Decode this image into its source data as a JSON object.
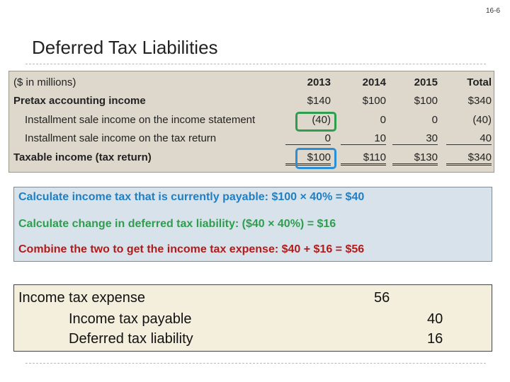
{
  "slide_number": "16-6",
  "title": "Deferred Tax Liabilities",
  "table": {
    "unit_label": "($ in millions)",
    "columns": [
      "2013",
      "2014",
      "2015",
      "Total"
    ],
    "rows": [
      {
        "label": "Pretax accounting income",
        "values": [
          "$140",
          "$100",
          "$100",
          "$340"
        ]
      },
      {
        "label": "Installment sale income on the income statement",
        "values": [
          "(40)",
          "0",
          "0",
          "(40)"
        ]
      },
      {
        "label": "Installment sale income on the tax return",
        "values": [
          "0",
          "10",
          "30",
          "40"
        ]
      },
      {
        "label": "Taxable income (tax return)",
        "values": [
          "$100",
          "$110",
          "$130",
          "$340"
        ]
      }
    ]
  },
  "calculations": [
    {
      "text": "Calculate income tax that is currently payable:  $100 × 40% = $40",
      "color": "#1f7fc4"
    },
    {
      "text": "Calculate change in deferred tax liability:  ($40 × 40%) = $16",
      "color": "#2e9e4e"
    },
    {
      "text": "Combine the two to get the income tax expense: $40 + $16 = $56",
      "color": "#b31b1b"
    }
  ],
  "journal_entry": {
    "debit_account": "Income tax expense",
    "debit_amount": "56",
    "credits": [
      {
        "account": "Income tax payable",
        "amount": "40"
      },
      {
        "account": "Deferred tax liability",
        "amount": "16"
      }
    ]
  },
  "colors": {
    "highlight_green": "#2e9e4e",
    "highlight_blue": "#2b8fd8",
    "table_bg": "#ddd8cb",
    "calc_bg": "#d8e2ea",
    "entry_bg": "#f4eedd"
  }
}
